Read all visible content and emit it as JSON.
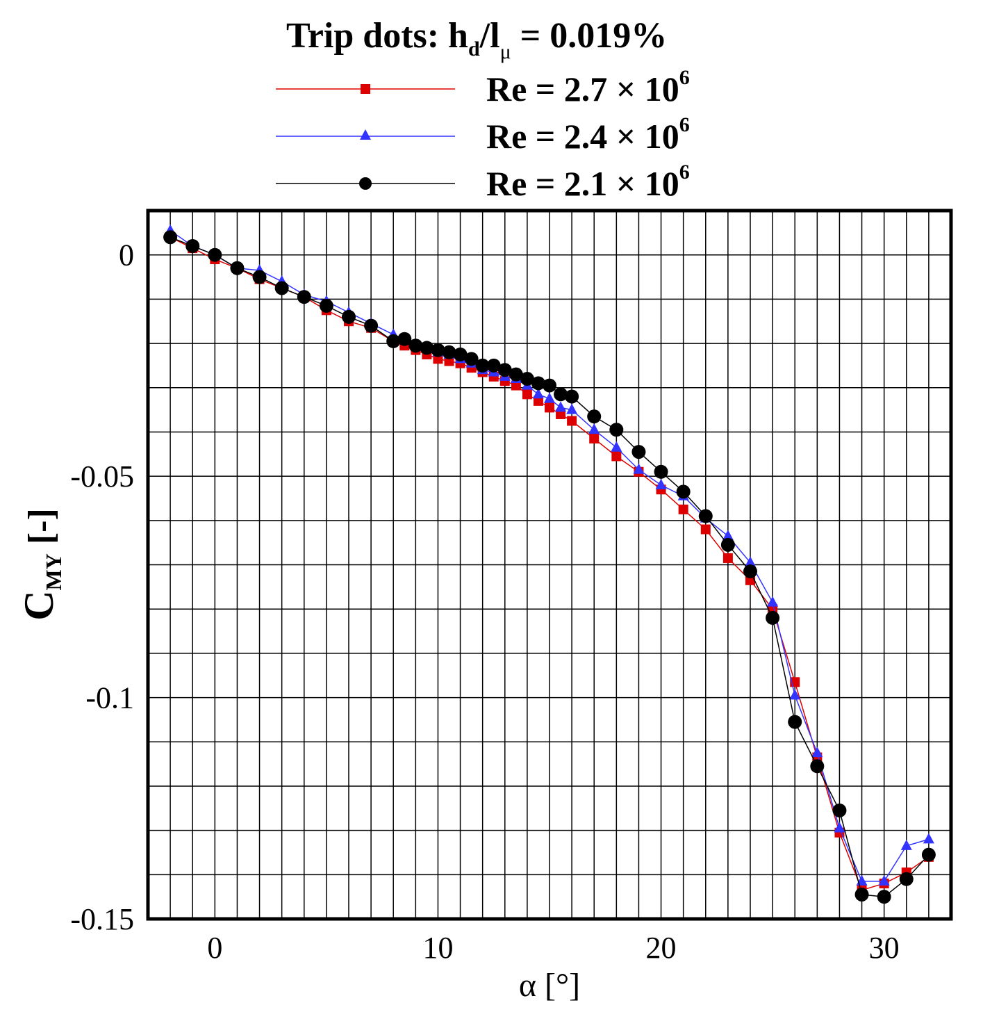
{
  "chart_data": {
    "type": "line",
    "title": "Trip dots: h_d/l_μ = 0.019%",
    "title_parts": {
      "prefix": "Trip dots: h",
      "sub1": "d",
      "slash": "/l",
      "sub2": "μ",
      "suffix": " = 0.019%"
    },
    "xlabel": "α [°]",
    "ylabel": "C_MY [-]",
    "ylabel_parts": {
      "main": "C",
      "sub": "MY",
      "suffix": " [-]"
    },
    "xlim": [
      -3,
      33
    ],
    "ylim": [
      -0.15,
      0.01
    ],
    "x_ticks": [
      0,
      10,
      20,
      30
    ],
    "x_tick_labels": [
      "0",
      "10",
      "20",
      "30"
    ],
    "y_ticks": [
      0,
      -0.05,
      -0.1,
      -0.15
    ],
    "y_tick_labels": [
      "0",
      "-0.05",
      "-0.1",
      "-0.15"
    ],
    "x_grid_step": 1,
    "y_grid_step": 0.01,
    "grid": true,
    "legend_position": "top",
    "series": [
      {
        "name": "Re = 2.7 × 10^6",
        "label": {
          "prefix": "Re = 2.7 × 10",
          "exp": "6"
        },
        "color": "#dd0000",
        "marker": "square",
        "x": [
          -2,
          -1,
          0,
          1,
          2,
          3,
          4,
          5,
          6,
          7,
          8,
          8.5,
          9,
          9.5,
          10,
          10.5,
          11,
          11.5,
          12,
          12.5,
          13,
          13.5,
          14,
          14.5,
          15,
          15.5,
          16,
          17,
          18,
          19,
          20,
          21,
          22,
          23,
          24,
          25,
          26,
          27,
          28,
          29,
          30,
          31,
          32
        ],
        "y": [
          0.004,
          0.0015,
          -0.001,
          -0.003,
          -0.0055,
          -0.0075,
          -0.0095,
          -0.0125,
          -0.015,
          -0.0165,
          -0.0195,
          -0.0205,
          -0.0215,
          -0.0225,
          -0.0235,
          -0.024,
          -0.0245,
          -0.0255,
          -0.0265,
          -0.0275,
          -0.0285,
          -0.0295,
          -0.0315,
          -0.033,
          -0.0345,
          -0.036,
          -0.0375,
          -0.0415,
          -0.0455,
          -0.049,
          -0.053,
          -0.0575,
          -0.062,
          -0.0685,
          -0.0735,
          -0.08,
          -0.0965,
          -0.1135,
          -0.1305,
          -0.1435,
          -0.142,
          -0.1395,
          -0.136
        ]
      },
      {
        "name": "Re = 2.4 × 10^6",
        "label": {
          "prefix": "Re = 2.4 × 10",
          "exp": "6"
        },
        "color": "#3333ff",
        "marker": "triangle",
        "x": [
          -2,
          -1,
          0,
          1,
          2,
          3,
          4,
          5,
          6,
          7,
          8,
          8.5,
          9,
          9.5,
          10,
          10.5,
          11,
          11.5,
          12,
          12.5,
          13,
          13.5,
          14,
          14.5,
          15,
          15.5,
          16,
          17,
          18,
          19,
          20,
          21,
          22,
          23,
          24,
          25,
          26,
          27,
          28,
          29,
          30,
          31,
          32
        ],
        "y": [
          0.0055,
          0.002,
          0,
          -0.003,
          -0.0035,
          -0.006,
          -0.009,
          -0.0105,
          -0.013,
          -0.0155,
          -0.018,
          -0.019,
          -0.0205,
          -0.021,
          -0.022,
          -0.0225,
          -0.0235,
          -0.0245,
          -0.026,
          -0.0265,
          -0.0275,
          -0.028,
          -0.0295,
          -0.0315,
          -0.0325,
          -0.0345,
          -0.035,
          -0.0395,
          -0.0435,
          -0.0485,
          -0.052,
          -0.0545,
          -0.0595,
          -0.0635,
          -0.0695,
          -0.0785,
          -0.0995,
          -0.1125,
          -0.1295,
          -0.1415,
          -0.1415,
          -0.1335,
          -0.132
        ]
      },
      {
        "name": "Re = 2.1 × 10^6",
        "label": {
          "prefix": "Re = 2.1 × 10",
          "exp": "6"
        },
        "color": "#000000",
        "marker": "circle",
        "x": [
          -2,
          -1,
          0,
          1,
          2,
          3,
          4,
          5,
          6,
          7,
          8,
          8.5,
          9,
          9.5,
          10,
          10.5,
          11,
          11.5,
          12,
          12.5,
          13,
          13.5,
          14,
          14.5,
          15,
          15.5,
          16,
          17,
          18,
          19,
          20,
          21,
          22,
          23,
          24,
          25,
          26,
          27,
          28,
          29,
          30,
          31,
          32
        ],
        "y": [
          0.004,
          0.002,
          0,
          -0.003,
          -0.005,
          -0.0075,
          -0.0095,
          -0.0115,
          -0.014,
          -0.016,
          -0.0195,
          -0.019,
          -0.0205,
          -0.021,
          -0.0215,
          -0.022,
          -0.0225,
          -0.0235,
          -0.025,
          -0.025,
          -0.026,
          -0.027,
          -0.028,
          -0.029,
          -0.0295,
          -0.0315,
          -0.032,
          -0.0365,
          -0.0395,
          -0.0445,
          -0.049,
          -0.0535,
          -0.059,
          -0.0655,
          -0.0715,
          -0.082,
          -0.1055,
          -0.1155,
          -0.1255,
          -0.1445,
          -0.145,
          -0.141,
          -0.1355
        ]
      }
    ]
  }
}
